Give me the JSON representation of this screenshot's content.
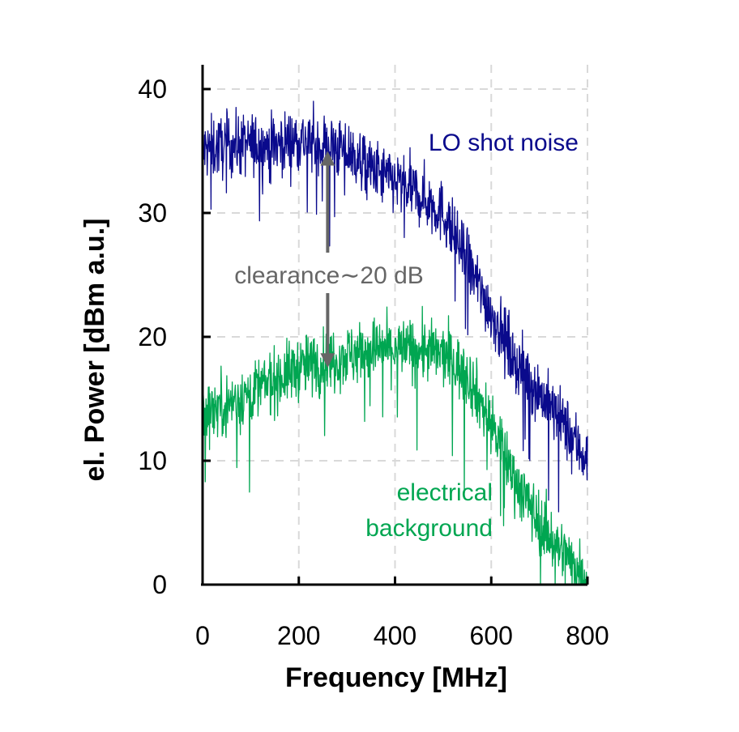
{
  "chart_data": {
    "type": "line",
    "xlabel": "Frequency [MHz]",
    "ylabel": "el. Power [dBm a.u.]",
    "xlim": [
      0,
      800
    ],
    "ylim": [
      0,
      40
    ],
    "xticks": [
      0,
      200,
      400,
      600,
      800
    ],
    "yticks": [
      0,
      10,
      20,
      30,
      40
    ],
    "grid": true,
    "series": [
      {
        "name": "LO shot noise",
        "color": "#0a0a8c",
        "x": [
          0,
          50,
          100,
          150,
          200,
          250,
          300,
          350,
          400,
          450,
          500,
          550,
          600,
          650,
          700,
          750,
          800
        ],
        "y": [
          35,
          35.5,
          35.5,
          35.5,
          36,
          35.5,
          35,
          33.5,
          32.5,
          31.5,
          30,
          26,
          22,
          18,
          15.5,
          13,
          10
        ],
        "noise": 1.8
      },
      {
        "name": "electrical background",
        "color": "#00a651",
        "x": [
          0,
          50,
          100,
          150,
          200,
          250,
          300,
          350,
          400,
          450,
          500,
          550,
          600,
          650,
          700,
          750,
          800
        ],
        "y": [
          14,
          14.5,
          15.5,
          16.5,
          17.5,
          18,
          18.5,
          19,
          19,
          19,
          18.5,
          17,
          13,
          8.5,
          5,
          2.5,
          0.5
        ],
        "noise": 1.8
      }
    ],
    "annotations": {
      "lo_label": "LO shot noise",
      "bg_label_line1": "electrical",
      "bg_label_line2": "background",
      "clearance_label": "clearance∼20 dB",
      "arrow_x": 260,
      "arrow_from": 17.5,
      "arrow_to": 35
    },
    "annotation_colors": {
      "clearance": "#666666"
    }
  }
}
